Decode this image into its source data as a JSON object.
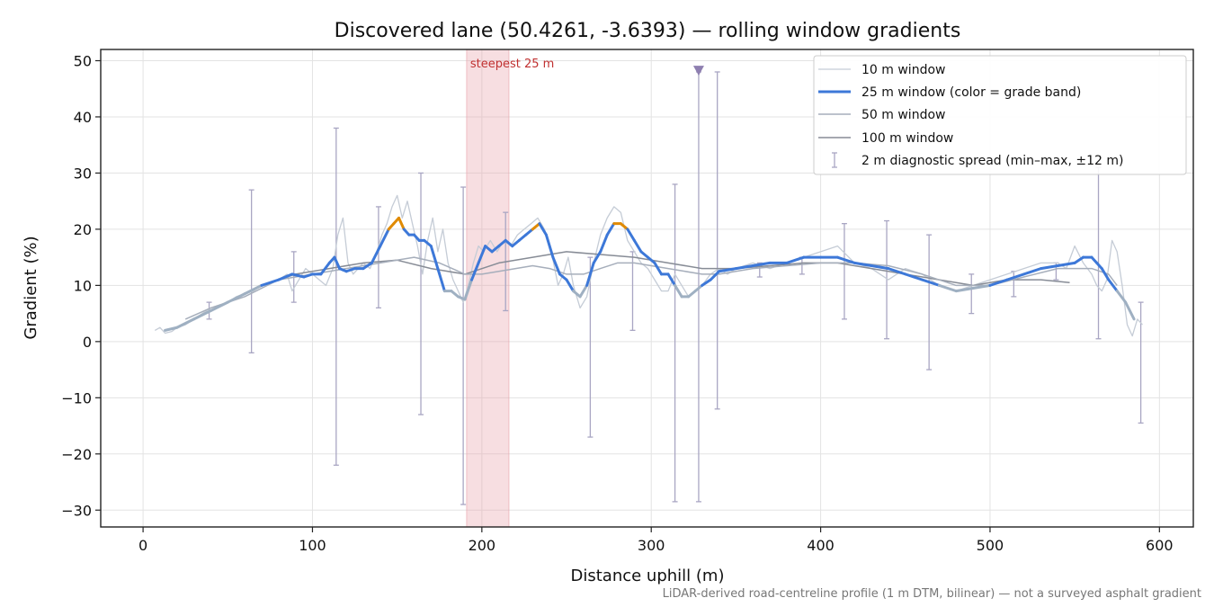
{
  "chart_data": {
    "type": "line",
    "title": "Discovered lane (50.4261, -3.6393) — rolling window gradients",
    "xlabel": "Distance uphill (m)",
    "ylabel": "Gradient (%)",
    "xlim": [
      -25,
      620
    ],
    "ylim": [
      -33,
      52
    ],
    "x_ticks": [
      0,
      100,
      200,
      300,
      400,
      500,
      600
    ],
    "y_ticks": [
      -30,
      -20,
      -10,
      0,
      10,
      20,
      30,
      40,
      50
    ],
    "x_tick_labels": [
      "0",
      "100",
      "200",
      "300",
      "400",
      "500",
      "600"
    ],
    "y_tick_labels": [
      "−30",
      "−20",
      "−10",
      "0",
      "10",
      "20",
      "30",
      "40",
      "50"
    ],
    "grid": true,
    "legend_position": "top-right",
    "footnote": "LiDAR-derived road-centreline profile (1 m DTM, bilinear) — not a surveyed asphalt gradient",
    "highlight": {
      "label": "steepest 25 m",
      "x_start": 191,
      "x_end": 216,
      "color": "#e8a0a8"
    },
    "marker": {
      "x": 328,
      "y": 48.3,
      "color": "#8e7fb0"
    },
    "colors": {
      "w10": "#c5ccd6",
      "w25_default": "#3d78d8",
      "w25_low": "#9fb0c2",
      "w25_high": "#e08a00",
      "w50": "#a6aebb",
      "w100": "#878c96",
      "errorbar": "#a9a6c3",
      "highlight_text": "#c03030",
      "footnote_text": "#777777"
    },
    "grade_bands": {
      "low_below": 10,
      "high_above": 20
    },
    "legend": [
      {
        "key": "w10",
        "label": "10 m window"
      },
      {
        "key": "w25",
        "label": "25 m window (color = grade band)"
      },
      {
        "key": "w50",
        "label": "50 m window"
      },
      {
        "key": "w100",
        "label": "100 m window"
      },
      {
        "key": "err",
        "label": "2 m diagnostic spread (min–max, ±12 m)"
      }
    ],
    "series": [
      {
        "key": "w10",
        "x": [
          7,
          10,
          13,
          17,
          20,
          25,
          30,
          35,
          40,
          45,
          50,
          55,
          60,
          65,
          70,
          75,
          80,
          85,
          88,
          92,
          96,
          100,
          104,
          108,
          112,
          115,
          118,
          121,
          124,
          127,
          130,
          134,
          138,
          141,
          144,
          147,
          150,
          153,
          156,
          159,
          162,
          165,
          168,
          171,
          174,
          177,
          180,
          183,
          186,
          189,
          192,
          195,
          198,
          201,
          205,
          209,
          213,
          217,
          221,
          225,
          229,
          233,
          237,
          241,
          245,
          248,
          251,
          254,
          258,
          262,
          266,
          270,
          274,
          278,
          282,
          286,
          290,
          294,
          298,
          302,
          306,
          310,
          314,
          318,
          322,
          326,
          330,
          335,
          340,
          345,
          350,
          360,
          370,
          380,
          390,
          400,
          410,
          420,
          430,
          440,
          450,
          460,
          470,
          480,
          490,
          500,
          510,
          520,
          530,
          540,
          545,
          550,
          555,
          560,
          563,
          566,
          569,
          572,
          575,
          578,
          581,
          584,
          587,
          590
        ],
        "y": [
          2,
          2.5,
          1.5,
          1.8,
          2.5,
          3,
          4,
          5,
          6,
          6.5,
          7,
          8,
          8.5,
          9,
          10,
          10.5,
          11,
          12,
          9,
          11,
          13,
          12,
          11,
          10,
          13,
          19,
          22,
          14,
          12,
          13,
          14,
          13,
          16,
          19,
          21,
          24,
          26,
          22,
          25,
          21,
          17,
          12,
          18,
          22,
          16,
          20,
          14,
          11,
          9,
          7,
          10,
          14,
          17,
          16,
          18,
          16,
          18,
          17,
          19,
          20,
          21,
          22,
          20,
          16,
          10,
          12,
          15,
          10,
          6,
          8,
          14,
          19,
          22,
          24,
          23,
          18,
          16,
          14,
          13,
          11,
          9,
          9,
          12,
          10,
          8,
          9,
          10,
          12,
          13,
          12,
          13,
          14,
          13,
          14,
          15,
          16,
          17,
          14,
          13,
          11,
          13,
          12,
          10,
          9,
          10,
          11,
          12,
          13,
          14,
          14,
          13,
          17,
          14,
          12,
          10,
          9,
          11,
          18,
          16,
          10,
          3,
          1,
          4,
          3
        ]
      },
      {
        "key": "w25",
        "x": [
          13,
          20,
          30,
          40,
          50,
          60,
          70,
          80,
          88,
          95,
          100,
          105,
          110,
          113,
          116,
          120,
          125,
          130,
          135,
          140,
          145,
          148,
          151,
          154,
          157,
          160,
          163,
          166,
          170,
          174,
          178,
          182,
          186,
          190,
          194,
          198,
          202,
          206,
          210,
          214,
          218,
          222,
          226,
          230,
          234,
          238,
          242,
          246,
          250,
          254,
          258,
          262,
          266,
          270,
          274,
          278,
          282,
          286,
          290,
          294,
          298,
          302,
          306,
          310,
          314,
          318,
          322,
          326,
          330,
          335,
          340,
          350,
          360,
          370,
          380,
          390,
          400,
          410,
          420,
          430,
          440,
          450,
          460,
          470,
          480,
          490,
          500,
          510,
          520,
          530,
          540,
          550,
          555,
          560,
          563,
          566,
          570,
          575,
          580,
          585
        ],
        "y": [
          2,
          2.5,
          4,
          5.5,
          7,
          8.5,
          10,
          11,
          12,
          11.5,
          12,
          12,
          14,
          15,
          13,
          12.5,
          13,
          13,
          14,
          17,
          20,
          21,
          22,
          20,
          19,
          19,
          18,
          18,
          17,
          13,
          9,
          9,
          8,
          7.5,
          11,
          14,
          17,
          16,
          17,
          18,
          17,
          18,
          19,
          20,
          21,
          19,
          15,
          12,
          11,
          9,
          8,
          10,
          14,
          16,
          19,
          21,
          21,
          20,
          18,
          16,
          15,
          14,
          12,
          12,
          10,
          8,
          8,
          9,
          10,
          11,
          12.5,
          13,
          13.5,
          14,
          14,
          15,
          15,
          15,
          14,
          13.5,
          13,
          12,
          11,
          10,
          9,
          9.5,
          10,
          11,
          12,
          13,
          13.5,
          14,
          15,
          15,
          14,
          13,
          11,
          9,
          7,
          4
        ]
      },
      {
        "key": "w50",
        "x": [
          25,
          40,
          60,
          80,
          100,
          120,
          140,
          160,
          175,
          190,
          200,
          210,
          220,
          230,
          240,
          250,
          260,
          270,
          280,
          290,
          300,
          310,
          320,
          330,
          340,
          350,
          360,
          380,
          400,
          420,
          440,
          460,
          480,
          500,
          520,
          540,
          560,
          570,
          575
        ],
        "y": [
          4,
          6,
          8,
          11,
          12,
          13,
          14,
          15,
          14,
          12,
          12,
          12.5,
          13,
          13.5,
          13,
          12,
          12,
          13,
          14,
          14,
          13.5,
          13,
          12.5,
          12,
          12,
          12.5,
          13,
          13.5,
          14,
          14,
          13.5,
          12,
          10,
          10,
          11.5,
          13,
          13,
          12,
          10
        ]
      },
      {
        "key": "w100",
        "x": [
          50,
          70,
          90,
          110,
          130,
          150,
          170,
          190,
          210,
          230,
          250,
          270,
          290,
          310,
          330,
          350,
          370,
          390,
          410,
          430,
          450,
          470,
          490,
          510,
          530,
          547
        ],
        "y": [
          7,
          10,
          12,
          13,
          14,
          14.5,
          13,
          12,
          14,
          15,
          16,
          15.5,
          15,
          14,
          13,
          13,
          13.5,
          14,
          14,
          13,
          12,
          11,
          10,
          11,
          11,
          10.5
        ]
      }
    ],
    "errorbars": [
      {
        "x": 39,
        "low": 4,
        "high": 7
      },
      {
        "x": 64,
        "low": -2,
        "high": 27
      },
      {
        "x": 89,
        "low": 7,
        "high": 16
      },
      {
        "x": 114,
        "low": -22,
        "high": 38
      },
      {
        "x": 139,
        "low": 6,
        "high": 24
      },
      {
        "x": 164,
        "low": -13,
        "high": 30
      },
      {
        "x": 189,
        "low": -29,
        "high": 27.5
      },
      {
        "x": 214,
        "low": 5.5,
        "high": 23
      },
      {
        "x": 264,
        "low": -17,
        "high": 15
      },
      {
        "x": 289,
        "low": 2,
        "high": 16
      },
      {
        "x": 314,
        "low": -28.5,
        "high": 28
      },
      {
        "x": 328,
        "low": -28.5,
        "high": 48
      },
      {
        "x": 339,
        "low": -12,
        "high": 48
      },
      {
        "x": 364,
        "low": 11.5,
        "high": 14
      },
      {
        "x": 389,
        "low": 12,
        "high": 15
      },
      {
        "x": 414,
        "low": 4,
        "high": 21
      },
      {
        "x": 439,
        "low": 0.5,
        "high": 21.5
      },
      {
        "x": 464,
        "low": -5,
        "high": 19
      },
      {
        "x": 489,
        "low": 5,
        "high": 12
      },
      {
        "x": 514,
        "low": 8,
        "high": 12.5
      },
      {
        "x": 539,
        "low": 11,
        "high": 14
      },
      {
        "x": 564,
        "low": 0.5,
        "high": 31
      },
      {
        "x": 589,
        "low": -14.5,
        "high": 7
      }
    ]
  }
}
